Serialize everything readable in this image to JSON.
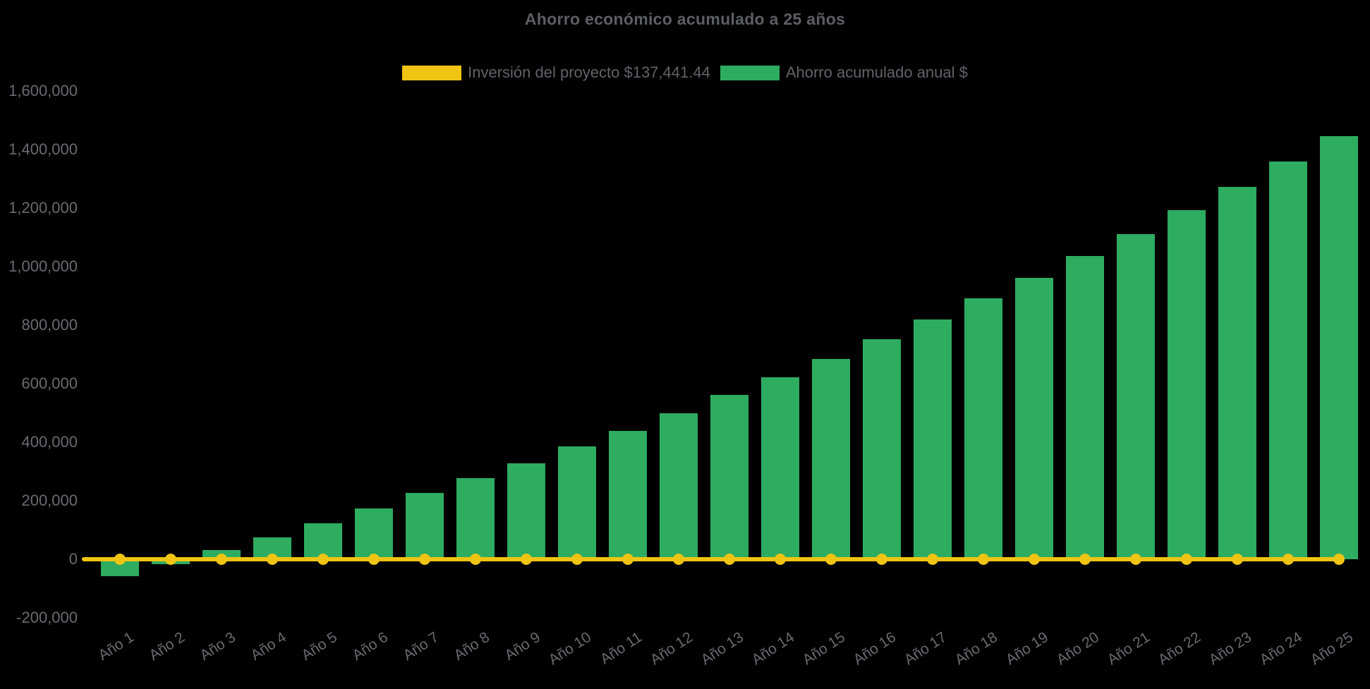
{
  "page": {
    "background": "#000000"
  },
  "chart_data": {
    "type": "bar",
    "title": "Ahorro económico acumulado a 25 años",
    "categories": [
      "Año 1",
      "Año 2",
      "Año 3",
      "Año 4",
      "Año 5",
      "Año 6",
      "Año 7",
      "Año 8",
      "Año 9",
      "Año 10",
      "Año 11",
      "Año 12",
      "Año 13",
      "Año 14",
      "Año 15",
      "Año 16",
      "Año 17",
      "Año 18",
      "Año 19",
      "Año 20",
      "Año 21",
      "Año 22",
      "Año 23",
      "Año 24",
      "Año 25"
    ],
    "series": [
      {
        "name": "Inversión del proyecto $137,441.44",
        "type": "line",
        "color": "#F0C413",
        "labeled_value": 137441.44,
        "plotted_value": 0,
        "marker": "circle"
      },
      {
        "name": "Ahorro acumulado anual $",
        "type": "bar",
        "color": "#2EAC60",
        "values": [
          -58000,
          -16000,
          31000,
          75000,
          123000,
          174000,
          227000,
          277000,
          328000,
          386000,
          439000,
          499000,
          561000,
          622000,
          684000,
          752000,
          819000,
          892000,
          961000,
          1036000,
          1111000,
          1193000,
          1272000,
          1359000,
          1446000
        ]
      }
    ],
    "xlabel": "",
    "ylabel": "",
    "ylim": [
      -200000,
      1600000
    ],
    "ytick_step": 200000,
    "ytick_labels": [
      "1,600,000",
      "1,400,000",
      "1,200,000",
      "1,000,000",
      "800,000",
      "600,000",
      "400,000",
      "200,000",
      "0",
      "-200,000"
    ],
    "grid": false,
    "legend_position": "top",
    "text_color": "#616365"
  }
}
